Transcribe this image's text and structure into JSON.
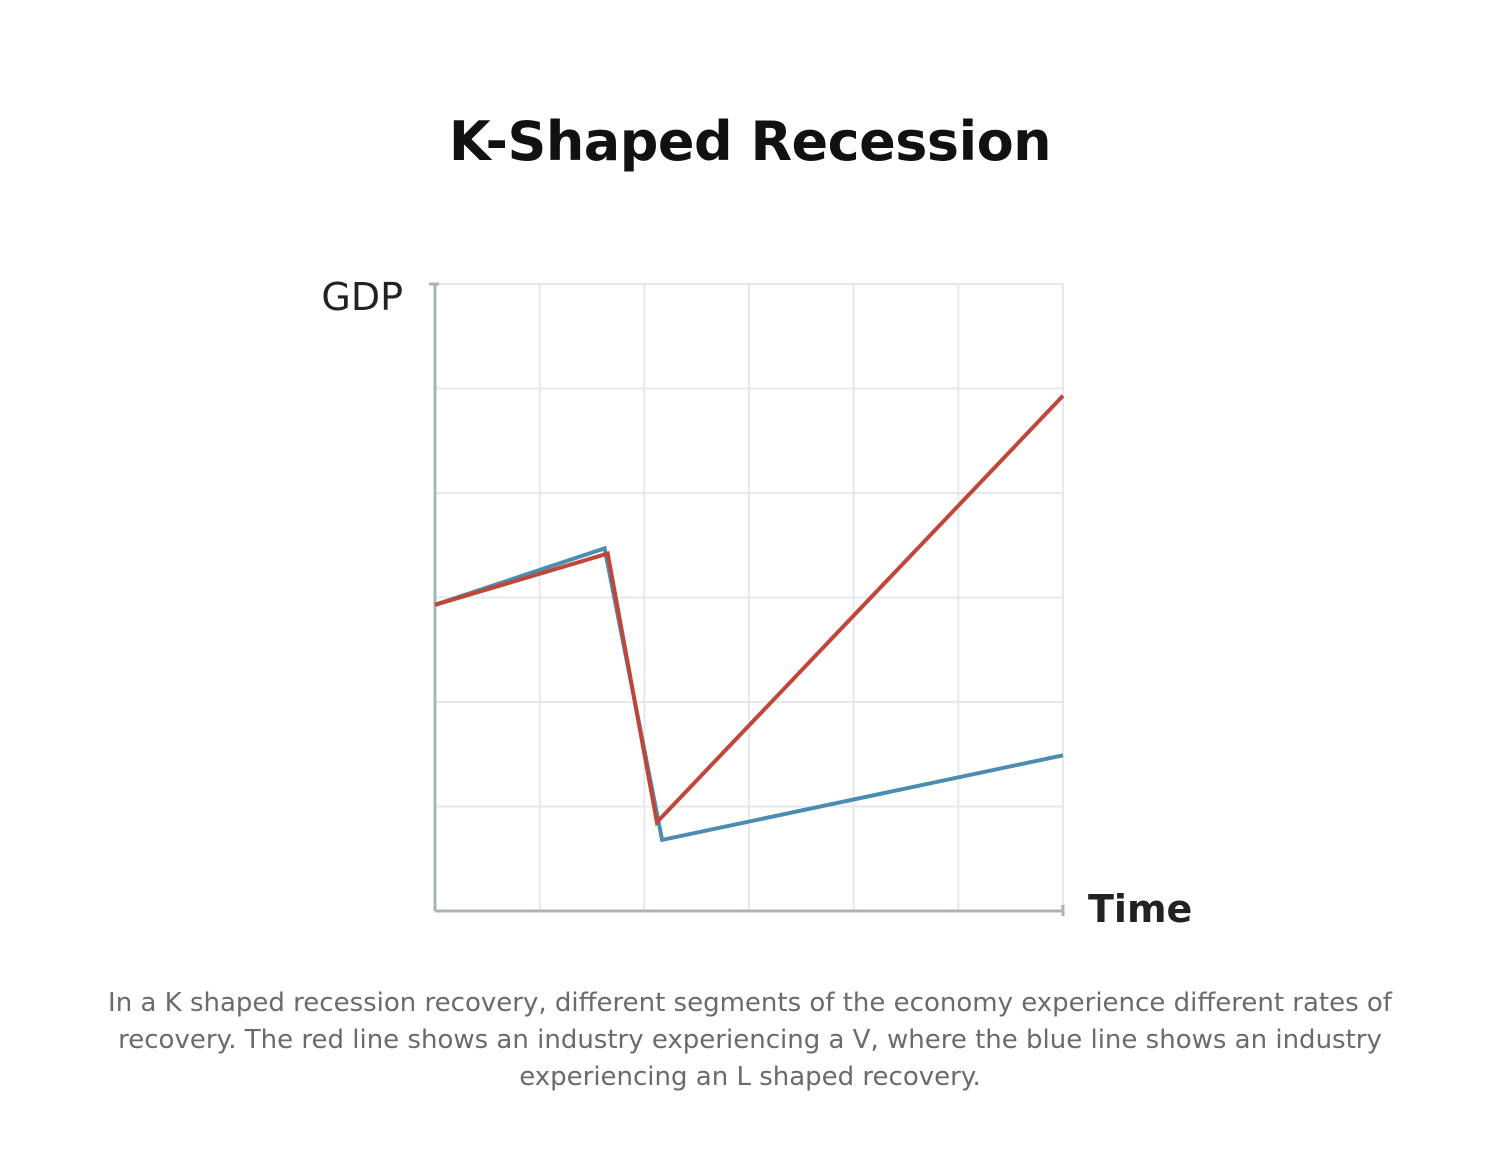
{
  "chart_data": {
    "type": "line",
    "title": "K-Shaped Recession",
    "xlabel": "Time",
    "ylabel": "GDP",
    "xlim": [
      0,
      6
    ],
    "ylim": [
      0,
      6
    ],
    "grid": true,
    "legend": "none",
    "series": [
      {
        "color": "#4a8db1",
        "points": [
          [
            0,
            2.93
          ],
          [
            1.62,
            3.47
          ],
          [
            2.17,
            0.68
          ],
          [
            6,
            1.49
          ]
        ]
      },
      {
        "color": "#c0463a",
        "points": [
          [
            0,
            2.93
          ],
          [
            1.65,
            3.42
          ],
          [
            2.12,
            0.85
          ],
          [
            6,
            4.93
          ]
        ]
      }
    ]
  },
  "caption": "In a K shaped recession recovery, different segments of the economy experience different rates of recovery. The red line shows an industry experiencing a V, where the blue line shows an industry experiencing an L shaped recovery.",
  "colors": {
    "grid": "#e6e9eb",
    "axis": "#a9b3b8",
    "axis_label": "#222222",
    "title": "#111111",
    "caption": "#6b6b6b"
  }
}
